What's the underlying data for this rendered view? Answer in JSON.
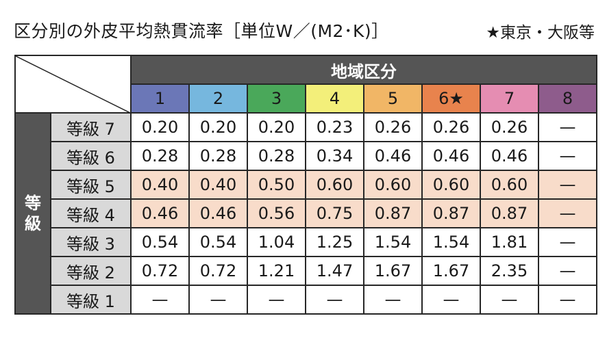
{
  "title": "区分別の外皮平均熱貫流率［単位W／(M2･K)］",
  "note": "★東京・大阪等",
  "header": {
    "region_header": "地域区分"
  },
  "row_group_label": "等級",
  "chart_data": {
    "type": "table",
    "title": "区分別の外皮平均熱貫流率［単位W／(M2･K)］",
    "column_header": "地域区分",
    "row_header": "等級",
    "columns": [
      {
        "label": "1",
        "color": "#6b77b7"
      },
      {
        "label": "2",
        "color": "#76b7de"
      },
      {
        "label": "3",
        "color": "#4aa85a"
      },
      {
        "label": "4",
        "color": "#f3ef7a"
      },
      {
        "label": "5",
        "color": "#f1b666"
      },
      {
        "label": "6★",
        "color": "#e8834d"
      },
      {
        "label": "7",
        "color": "#e58db2"
      },
      {
        "label": "8",
        "color": "#8e5c8c"
      }
    ],
    "rows": [
      {
        "label": "等級 7",
        "highlight": false,
        "values": [
          "0.20",
          "0.20",
          "0.20",
          "0.23",
          "0.26",
          "0.26",
          "0.26",
          "—"
        ]
      },
      {
        "label": "等級 6",
        "highlight": false,
        "values": [
          "0.28",
          "0.28",
          "0.28",
          "0.34",
          "0.46",
          "0.46",
          "0.46",
          "—"
        ]
      },
      {
        "label": "等級 5",
        "highlight": true,
        "values": [
          "0.40",
          "0.40",
          "0.50",
          "0.60",
          "0.60",
          "0.60",
          "0.60",
          "—"
        ]
      },
      {
        "label": "等級 4",
        "highlight": true,
        "values": [
          "0.46",
          "0.46",
          "0.56",
          "0.75",
          "0.87",
          "0.87",
          "0.87",
          "—"
        ]
      },
      {
        "label": "等級 3",
        "highlight": false,
        "values": [
          "0.54",
          "0.54",
          "1.04",
          "1.25",
          "1.54",
          "1.54",
          "1.81",
          "—"
        ]
      },
      {
        "label": "等級 2",
        "highlight": false,
        "values": [
          "0.72",
          "0.72",
          "1.21",
          "1.47",
          "1.67",
          "1.67",
          "2.35",
          "—"
        ]
      },
      {
        "label": "等級 1",
        "highlight": false,
        "values": [
          "—",
          "—",
          "—",
          "—",
          "—",
          "—",
          "—",
          "—"
        ]
      }
    ],
    "highlight_color": "#f8dcca"
  }
}
